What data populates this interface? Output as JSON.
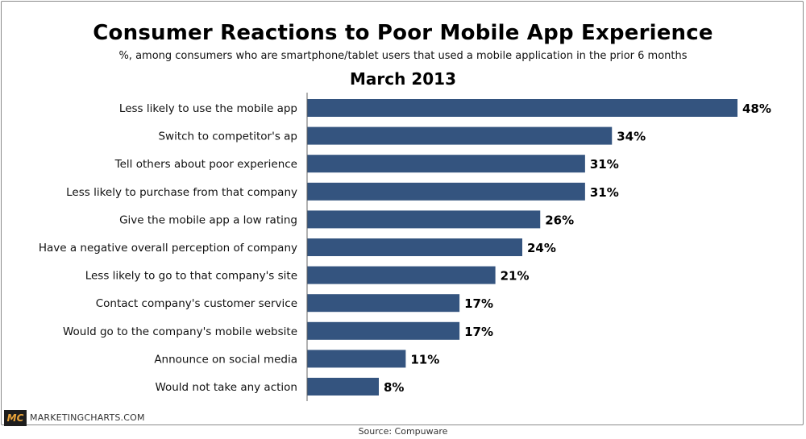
{
  "chart_data": {
    "type": "bar",
    "orientation": "horizontal",
    "title": "Consumer Reactions to Poor Mobile App Experience",
    "subtitle": "%, among consumers who are smartphone/tablet users that used a mobile application in the prior 6 months",
    "period": "March 2013",
    "categories": [
      "Less likely to use the mobile app",
      "Switch to competitor's ap",
      "Tell others about poor experience",
      "Less likely to purchase from that company",
      "Give the mobile app a low rating",
      "Have a negative overall perception of company",
      "Less likely to go to that company's site",
      "Contact company's customer service",
      "Would go to the company's mobile website",
      "Announce on social media",
      "Would not take any action"
    ],
    "values": [
      48,
      34,
      31,
      31,
      26,
      24,
      21,
      17,
      17,
      11,
      8
    ],
    "value_labels": [
      "48%",
      "34%",
      "31%",
      "31%",
      "26%",
      "24%",
      "21%",
      "17%",
      "17%",
      "11%",
      "8%"
    ],
    "xlim": [
      0,
      48
    ],
    "grid": false,
    "bar_color": "#34547f"
  },
  "footer": {
    "logo_text": "MC",
    "brand": "MARKETINGCHARTS.COM",
    "source": "Source: Compuware"
  }
}
